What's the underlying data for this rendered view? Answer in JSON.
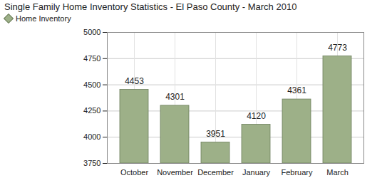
{
  "chart_data": {
    "type": "bar",
    "title": "Single Family Home Inventory Statistics - El Paso County - March 2010",
    "categories": [
      "October",
      "November",
      "December",
      "January",
      "February",
      "March"
    ],
    "series": [
      {
        "name": "Home Inventory",
        "color": "#9db088",
        "values": [
          4453,
          4301,
          3951,
          4120,
          4361,
          4773
        ]
      }
    ],
    "ylim": [
      3750,
      5000
    ],
    "yticks": [
      3750,
      4000,
      4250,
      4500,
      4750,
      5000
    ],
    "grid": true,
    "legend": "top-left",
    "data_labels": true
  }
}
